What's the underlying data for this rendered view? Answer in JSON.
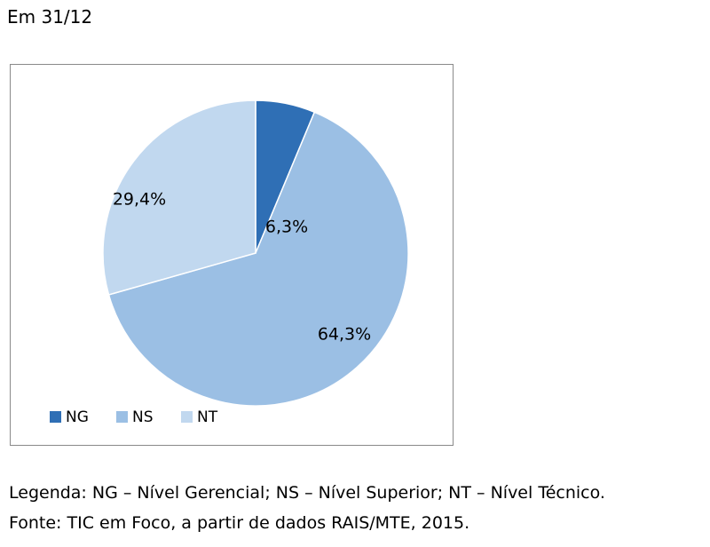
{
  "heading": "Em 31/12",
  "chart_data": {
    "type": "pie",
    "categories": [
      "NG",
      "NS",
      "NT"
    ],
    "values": [
      6.3,
      64.3,
      29.4
    ],
    "labels": [
      "6,3%",
      "64,3%",
      "29,4%"
    ],
    "colors": [
      "#2f6fb5",
      "#9bbfe4",
      "#c1d8ef"
    ],
    "start_angle_deg": 0,
    "direction": "clockwise",
    "legend_position": "bottom-left"
  },
  "captions": {
    "legend": "Legenda: NG – Nível Gerencial; NS – Nível Superior; NT – Nível Técnico.",
    "source": "Fonte: TIC em Foco, a partir de dados RAIS/MTE, 2015."
  }
}
